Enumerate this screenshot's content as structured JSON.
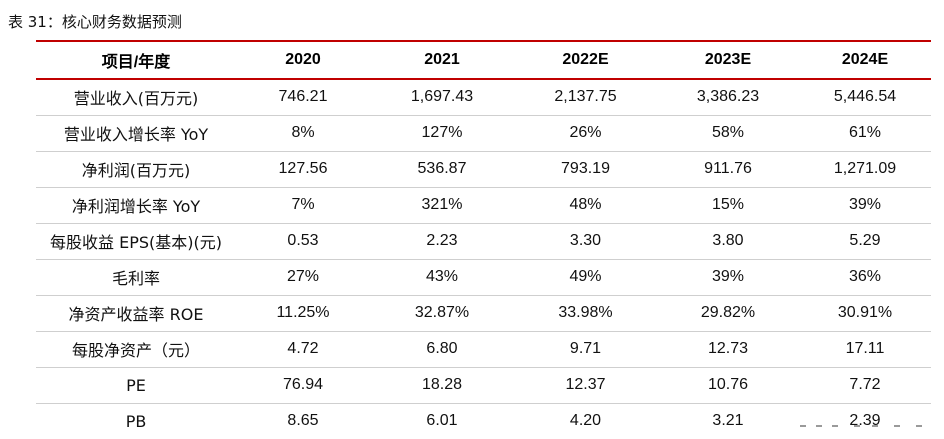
{
  "caption": "表 31：核心财务数据预测",
  "header": [
    "项目/年度",
    "2020",
    "2021",
    "2022E",
    "2023E",
    "2024E"
  ],
  "rows": [
    [
      "营业收入(百万元)",
      "746.21",
      "1,697.43",
      "2,137.75",
      "3,386.23",
      "5,446.54"
    ],
    [
      "营业收入增长率 YoY",
      "8%",
      "127%",
      "26%",
      "58%",
      "61%"
    ],
    [
      "净利润(百万元)",
      "127.56",
      "536.87",
      "793.19",
      "911.76",
      "1,271.09"
    ],
    [
      "净利润增长率 YoY",
      "7%",
      "321%",
      "48%",
      "15%",
      "39%"
    ],
    [
      "每股收益 EPS(基本)(元)",
      "0.53",
      "2.23",
      "3.30",
      "3.80",
      "5.29"
    ],
    [
      "毛利率",
      "27%",
      "43%",
      "49%",
      "39%",
      "36%"
    ],
    [
      "净资产收益率 ROE",
      "11.25%",
      "32.87%",
      "33.98%",
      "29.82%",
      "30.91%"
    ],
    [
      "每股净资产（元）",
      "4.72",
      "6.80",
      "9.71",
      "12.73",
      "17.11"
    ],
    [
      "PE",
      "76.94",
      "18.28",
      "12.37",
      "10.76",
      "7.72"
    ],
    [
      "PB",
      "8.65",
      "6.01",
      "4.20",
      "3.21",
      "2.39"
    ]
  ]
}
